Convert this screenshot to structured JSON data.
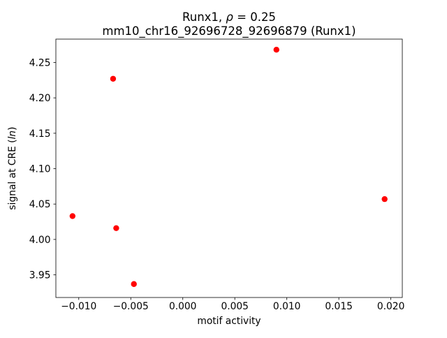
{
  "chart_data": {
    "type": "scatter",
    "title_line1_parts": [
      {
        "text": "Runx1, ",
        "italic": false
      },
      {
        "text": "ρ",
        "italic": true
      },
      {
        "text": " = 0.25",
        "italic": false
      }
    ],
    "title_line2": "mm10_chr16_92696728_92696879 (Runx1)",
    "xlabel": "motif activity",
    "ylabel_parts": [
      {
        "text": "signal at CRE (",
        "italic": false
      },
      {
        "text": "ln",
        "italic": true
      },
      {
        "text": ")",
        "italic": false
      }
    ],
    "xlim": [
      -0.0122,
      0.0211
    ],
    "ylim": [
      3.918,
      4.283
    ],
    "x_ticks": [
      -0.01,
      -0.005,
      0.0,
      0.005,
      0.01,
      0.015,
      0.02
    ],
    "x_tick_labels": [
      "−0.010",
      "−0.005",
      "0.000",
      "0.005",
      "0.010",
      "0.015",
      "0.020"
    ],
    "y_ticks": [
      3.95,
      4.0,
      4.05,
      4.1,
      4.15,
      4.2,
      4.25
    ],
    "y_tick_labels": [
      "3.95",
      "4.00",
      "4.05",
      "4.10",
      "4.15",
      "4.20",
      "4.25"
    ],
    "points": [
      {
        "x": -0.0106,
        "y": 4.033
      },
      {
        "x": -0.0067,
        "y": 4.227
      },
      {
        "x": -0.0064,
        "y": 4.016
      },
      {
        "x": -0.0047,
        "y": 3.937
      },
      {
        "x": 0.009,
        "y": 4.268
      },
      {
        "x": 0.0194,
        "y": 4.057
      }
    ],
    "marker_color": "#ff0000",
    "marker_radius": 4.2,
    "grid": false,
    "legend": null,
    "axes_color": "#000000",
    "background_color": "#ffffff"
  }
}
